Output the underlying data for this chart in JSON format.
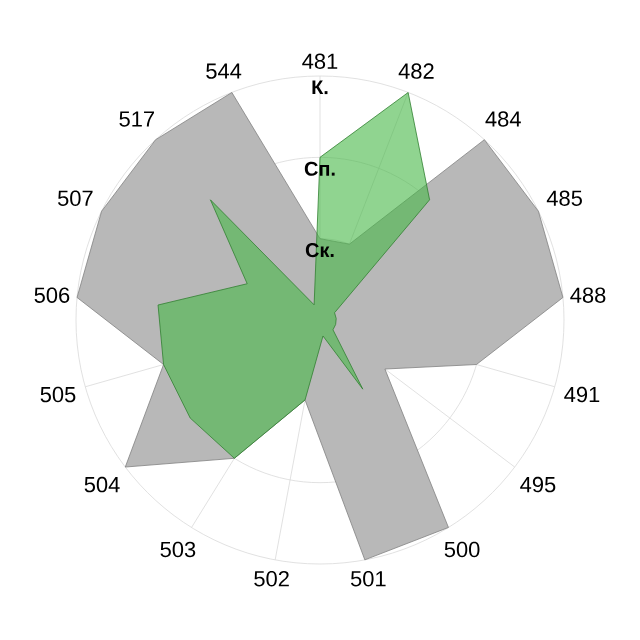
{
  "chart_data": {
    "type": "radar",
    "categories": [
      "481",
      "482",
      "484",
      "485",
      "488",
      "491",
      "495",
      "500",
      "501",
      "502",
      "503",
      "504",
      "505",
      "506",
      "507",
      "517",
      "544"
    ],
    "series": [
      {
        "color": "#b8b8b8",
        "values": [
          1,
          1,
          3,
          3,
          3,
          2,
          1,
          3,
          3,
          1,
          2,
          3,
          2,
          3,
          3,
          3,
          3
        ]
      },
      {
        "color": "#46b746",
        "values": [
          2,
          3,
          2,
          0.2,
          0.2,
          0.2,
          0.2,
          1,
          0.2,
          1,
          2,
          2,
          2,
          2,
          1,
          2,
          0.2
        ]
      }
    ],
    "ylim": [
      0,
      3
    ],
    "yticks": [
      {
        "value": 1,
        "label": "Ск."
      },
      {
        "value": 2,
        "label": "Сп."
      },
      {
        "value": 3,
        "label": "К."
      }
    ],
    "grid": true
  }
}
